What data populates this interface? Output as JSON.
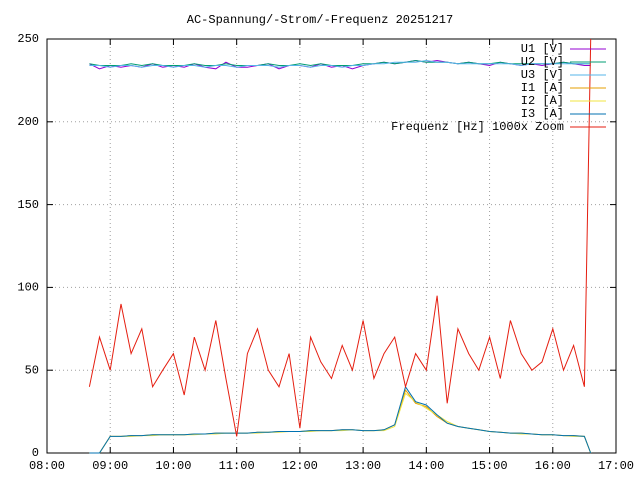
{
  "chart_data": {
    "type": "line",
    "title": "AC-Spannung/-Strom/-Frequenz 20251217",
    "x": [
      8.67,
      8.83,
      9,
      9.17,
      9.33,
      9.5,
      9.67,
      9.83,
      10,
      10.17,
      10.33,
      10.5,
      10.67,
      10.83,
      11,
      11.17,
      11.33,
      11.5,
      11.67,
      11.83,
      12,
      12.17,
      12.33,
      12.5,
      12.67,
      12.83,
      13,
      13.17,
      13.33,
      13.5,
      13.67,
      13.83,
      14,
      14.17,
      14.33,
      14.5,
      14.67,
      14.83,
      15,
      15.17,
      15.33,
      15.5,
      15.67,
      15.83,
      16,
      16.17,
      16.33,
      16.5,
      16.6
    ],
    "series": [
      {
        "name": "U1 [V]",
        "color": "#9400d3",
        "values": [
          235,
          232,
          234,
          233,
          234,
          233,
          235,
          233,
          234,
          233,
          235,
          233,
          232,
          236,
          233,
          233,
          234,
          235,
          232,
          234,
          234,
          233,
          235,
          233,
          234,
          232,
          234,
          235,
          236,
          235,
          236,
          237,
          236,
          237,
          236,
          235,
          236,
          235,
          234,
          236,
          235,
          234,
          235,
          234,
          235,
          236,
          235,
          234,
          234
        ]
      },
      {
        "name": "U2 [V]",
        "color": "#009e73",
        "values": [
          235,
          234,
          234,
          234,
          235,
          234,
          235,
          234,
          234,
          234,
          235,
          234,
          234,
          235,
          234,
          234,
          234,
          235,
          234,
          234,
          235,
          234,
          235,
          234,
          234,
          234,
          235,
          235,
          236,
          235,
          236,
          237,
          236,
          236,
          236,
          235,
          236,
          235,
          235,
          236,
          235,
          235,
          235,
          235,
          235,
          236,
          235,
          235,
          235
        ]
      },
      {
        "name": "U3 [V]",
        "color": "#56b4e9",
        "values": [
          234,
          234,
          233,
          234,
          234,
          233,
          234,
          234,
          233,
          234,
          234,
          233,
          234,
          234,
          233,
          234,
          234,
          234,
          233,
          234,
          234,
          233,
          234,
          234,
          233,
          234,
          234,
          235,
          235,
          236,
          236,
          236,
          237,
          236,
          236,
          235,
          235,
          235,
          235,
          235,
          235,
          234,
          235,
          235,
          235,
          235,
          235,
          235,
          235
        ]
      },
      {
        "name": "I1 [A]",
        "color": "#e69f00",
        "values": [
          0,
          0,
          10,
          10,
          10.5,
          10.5,
          11,
          11,
          11,
          11,
          11.5,
          11.5,
          12,
          12,
          12,
          12,
          12.5,
          12.5,
          13,
          13,
          13,
          13.5,
          13.5,
          13.5,
          14,
          14,
          13.5,
          13.5,
          14,
          17,
          38,
          30,
          28,
          22,
          18,
          16,
          15,
          14,
          13,
          12.5,
          12,
          12,
          11.5,
          11,
          11,
          10.5,
          10.5,
          10,
          0
        ]
      },
      {
        "name": "I2 [A]",
        "color": "#f0e442",
        "values": [
          0,
          0,
          10,
          10,
          10,
          10.5,
          10.5,
          11,
          11,
          11,
          11,
          11.5,
          11.5,
          12,
          12,
          12,
          12,
          12.5,
          12.5,
          13,
          13,
          13,
          13.5,
          13.5,
          13.5,
          14,
          13.5,
          13.5,
          13.5,
          16,
          36,
          31,
          27,
          23,
          19,
          16,
          15,
          14,
          13,
          12.5,
          12,
          11.5,
          11.5,
          11,
          11,
          10.5,
          10,
          10,
          0
        ]
      },
      {
        "name": "I3 [A]",
        "color": "#0072b2",
        "values": [
          0,
          0,
          10,
          10,
          10.5,
          10.5,
          11,
          11,
          11,
          11,
          11.5,
          11.5,
          12,
          12,
          12,
          12,
          12.5,
          12.5,
          13,
          13,
          13,
          13.5,
          13.5,
          13.5,
          14,
          14,
          13.5,
          13.5,
          14,
          17,
          40,
          31,
          29,
          23,
          18,
          16,
          15,
          14,
          13,
          12.5,
          12,
          12,
          11.5,
          11,
          11,
          10.5,
          10.5,
          10,
          0
        ]
      },
      {
        "name": "Frequenz [Hz] 1000x Zoom",
        "color": "#e51e10",
        "values": [
          40,
          70,
          50,
          90,
          60,
          75,
          40,
          50,
          60,
          35,
          70,
          50,
          80,
          45,
          10,
          60,
          75,
          50,
          40,
          60,
          15,
          70,
          55,
          45,
          65,
          50,
          80,
          45,
          60,
          70,
          40,
          60,
          50,
          95,
          30,
          75,
          60,
          50,
          70,
          45,
          80,
          60,
          50,
          55,
          75,
          50,
          65,
          40,
          250
        ]
      }
    ],
    "xlim": [
      8,
      17
    ],
    "xticks": [
      {
        "value": 8,
        "label": "08:00"
      },
      {
        "value": 9,
        "label": "09:00"
      },
      {
        "value": 10,
        "label": "10:00"
      },
      {
        "value": 11,
        "label": "11:00"
      },
      {
        "value": 12,
        "label": "12:00"
      },
      {
        "value": 13,
        "label": "13:00"
      },
      {
        "value": 14,
        "label": "14:00"
      },
      {
        "value": 15,
        "label": "15:00"
      },
      {
        "value": 16,
        "label": "16:00"
      },
      {
        "value": 17,
        "label": "17:00"
      }
    ],
    "ylim": [
      0,
      250
    ],
    "yticks": [
      0,
      50,
      100,
      150,
      200,
      250
    ],
    "grid": true,
    "legend": "top-right"
  }
}
